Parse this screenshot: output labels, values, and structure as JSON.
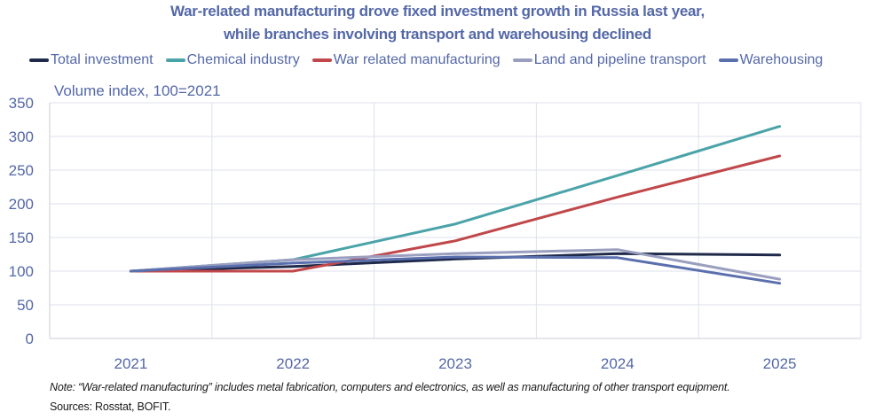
{
  "chart_data": {
    "type": "line",
    "title": "War-related manufacturing drove fixed investment growth in Russia last year,",
    "subtitle": "while branches involving transport and warehousing declined",
    "ylabel": "Volume index, 100=2021",
    "xlabel": "",
    "x": [
      "2021",
      "2022",
      "2023",
      "2024",
      "2025"
    ],
    "ylim": [
      0,
      350
    ],
    "yticks": [
      0,
      50,
      100,
      150,
      200,
      250,
      300,
      350
    ],
    "grid": true,
    "legend_position": "top",
    "series": [
      {
        "name": "Total investment",
        "color": "#1f2a4a",
        "values": [
          100,
          107,
          118,
          126,
          124
        ]
      },
      {
        "name": "Chemical industry",
        "color": "#4aa3a8",
        "values": [
          100,
          117,
          170,
          242,
          315
        ]
      },
      {
        "name": "War related manufacturing",
        "color": "#c0474a",
        "values": [
          100,
          100,
          145,
          210,
          271
        ]
      },
      {
        "name": "Land and pipeline transport",
        "color": "#9a9fbf",
        "values": [
          100,
          117,
          126,
          132,
          88
        ]
      },
      {
        "name": "Warehousing",
        "color": "#5b6fae",
        "values": [
          100,
          112,
          121,
          120,
          82
        ]
      }
    ]
  },
  "header": {
    "title_line1": "War-related manufacturing drove fixed investment growth in Russia last year,",
    "title_line2": "while branches involving transport and warehousing declined"
  },
  "unit_label": "Volume index, 100=2021",
  "footer": {
    "note": "Note: “War-related manufacturing” includes metal fabrication, computers and electronics, as well as manufacturing of other transport equipment.",
    "sources": "Sources: Rosstat, BOFIT."
  }
}
